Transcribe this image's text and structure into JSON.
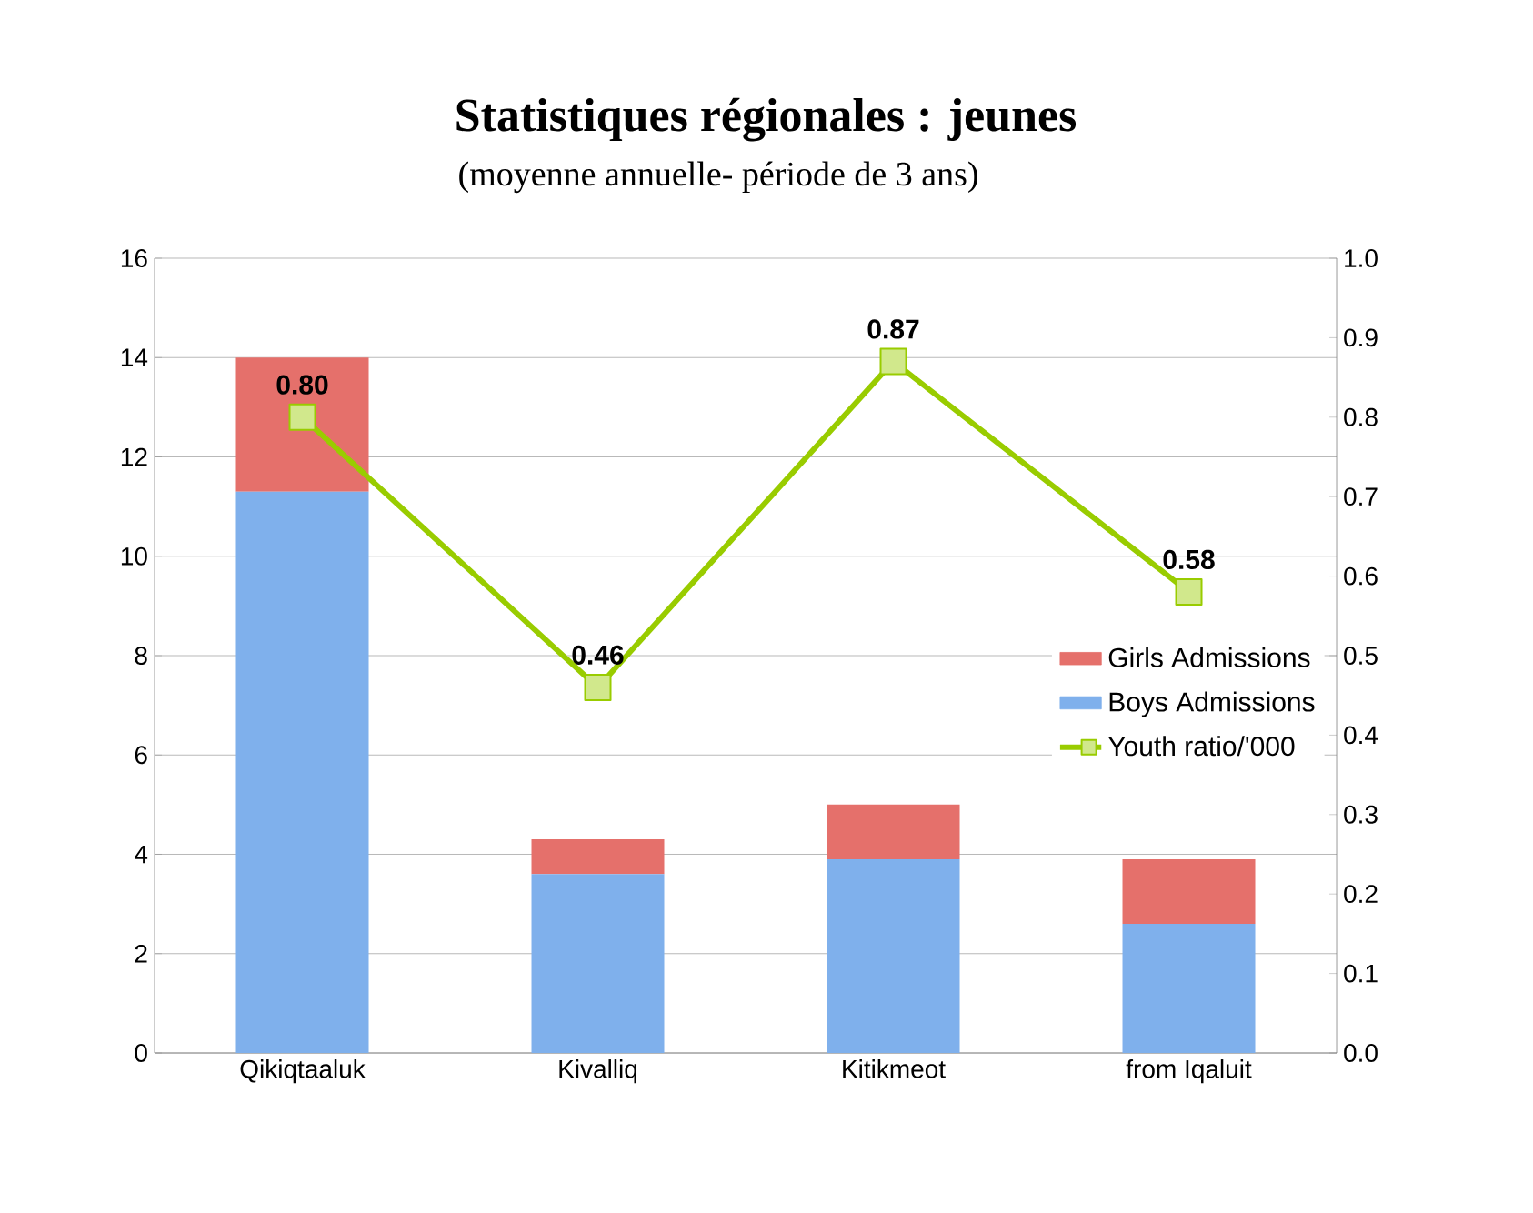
{
  "chart_data": {
    "type": "bar",
    "title": "Statistiques régionales : jeunes",
    "subtitle": "(moyenne annuelle- période de 3 ans)",
    "categories": [
      "Qikiqtaaluk",
      "Kivalliq",
      "Kitikmeot",
      "from Iqaluit"
    ],
    "stacked": true,
    "series": [
      {
        "name": "Boys Admissions",
        "color": "#7fb0ec",
        "values": [
          11.3,
          3.6,
          3.9,
          2.6
        ]
      },
      {
        "name": "Girls Admissions",
        "color": "#e5706b",
        "values": [
          2.7,
          0.7,
          1.1,
          1.3
        ]
      },
      {
        "name": "Youth ratio/'000",
        "type": "line",
        "axis": "y2",
        "color": "#99cc00",
        "marker": "square",
        "line_style": "solid",
        "values": [
          0.8,
          0.46,
          0.87,
          0.58
        ],
        "value_labels": [
          "0.80",
          "0.46",
          "0.87",
          "0.58"
        ]
      }
    ],
    "ylim": [
      0,
      16
    ],
    "yticks": [
      0,
      2,
      4,
      6,
      8,
      10,
      12,
      14,
      16
    ],
    "y2lim": [
      0,
      1
    ],
    "y2ticks": [
      {
        "value": 0,
        "label": "0.0"
      },
      {
        "value": 0.1,
        "label": "0.1"
      },
      {
        "value": 0.2,
        "label": "0.2"
      },
      {
        "value": 0.3,
        "label": "0.3"
      },
      {
        "value": 0.4,
        "label": "0.4"
      },
      {
        "value": 0.5,
        "label": "0.5"
      },
      {
        "value": 0.6,
        "label": "0.6"
      },
      {
        "value": 0.7,
        "label": "0.7"
      },
      {
        "value": 0.8,
        "label": "0.8"
      },
      {
        "value": 0.9,
        "label": "0.9"
      },
      {
        "value": 1.0,
        "label": "1.0"
      }
    ],
    "grid": "y",
    "legend": "right"
  }
}
